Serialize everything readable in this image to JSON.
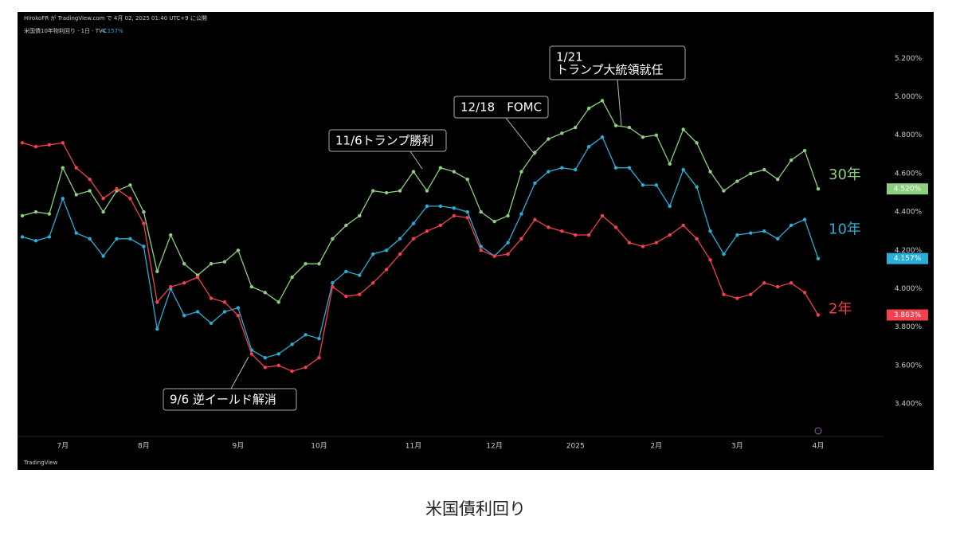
{
  "header": {
    "publisher": "HirokoFR が TradingView.com で 4月 02, 2025 01:40 UTC+9 に公開",
    "symbol": "米国債10年物利回り · 1日 · TVC",
    "price": "4.157%"
  },
  "chart_data": {
    "type": "line",
    "categories": [
      null,
      null,
      null,
      "7月",
      null,
      null,
      null,
      null,
      null,
      "8月",
      null,
      null,
      null,
      null,
      null,
      null,
      "9月",
      null,
      null,
      null,
      null,
      null,
      "10月",
      null,
      null,
      null,
      null,
      null,
      null,
      "11月",
      null,
      null,
      null,
      null,
      null,
      "12月",
      null,
      null,
      null,
      null,
      null,
      "2025",
      null,
      null,
      null,
      null,
      null,
      "2月",
      null,
      null,
      null,
      null,
      null,
      "3月",
      null,
      null,
      null,
      null,
      null,
      "4月"
    ],
    "series": [
      {
        "name": "30年",
        "color": "#8ccf7e",
        "last_label": "4.520%",
        "values": [
          4.38,
          4.4,
          4.39,
          4.63,
          4.49,
          4.51,
          4.4,
          4.51,
          4.54,
          4.4,
          4.09,
          4.28,
          4.13,
          4.07,
          4.13,
          4.14,
          4.2,
          4.01,
          3.98,
          3.93,
          4.06,
          4.13,
          4.13,
          4.26,
          4.33,
          4.38,
          4.51,
          4.5,
          4.51,
          4.61,
          4.51,
          4.63,
          4.61,
          4.57,
          4.4,
          4.35,
          4.38,
          4.61,
          4.71,
          4.78,
          4.81,
          4.84,
          4.94,
          4.98,
          4.85,
          4.84,
          4.79,
          4.8,
          4.65,
          4.83,
          4.76,
          4.61,
          4.51,
          4.56,
          4.6,
          4.62,
          4.57,
          4.67,
          4.72,
          4.52
        ]
      },
      {
        "name": "10年",
        "color": "#2aaed8",
        "last_label": "4.157%",
        "values": [
          4.27,
          4.25,
          4.27,
          4.47,
          4.29,
          4.26,
          4.17,
          4.26,
          4.26,
          4.22,
          3.79,
          4.0,
          3.86,
          3.88,
          3.82,
          3.88,
          3.9,
          3.68,
          3.64,
          3.66,
          3.71,
          3.76,
          3.74,
          4.03,
          4.09,
          4.07,
          4.18,
          4.2,
          4.26,
          4.34,
          4.43,
          4.43,
          4.42,
          4.4,
          4.22,
          4.17,
          4.24,
          4.39,
          4.55,
          4.61,
          4.63,
          4.62,
          4.74,
          4.79,
          4.63,
          4.63,
          4.54,
          4.54,
          4.43,
          4.62,
          4.53,
          4.3,
          4.18,
          4.28,
          4.29,
          4.3,
          4.26,
          4.33,
          4.36,
          4.157
        ]
      },
      {
        "name": "2年",
        "color": "#f2404e",
        "last_label": "3.863%",
        "values": [
          4.76,
          4.74,
          4.75,
          4.76,
          4.63,
          4.57,
          4.47,
          4.52,
          4.47,
          4.34,
          3.93,
          4.01,
          4.03,
          4.06,
          3.95,
          3.93,
          3.86,
          3.66,
          3.59,
          3.6,
          3.57,
          3.59,
          3.64,
          4.01,
          3.96,
          3.97,
          4.03,
          4.1,
          4.18,
          4.26,
          4.3,
          4.33,
          4.38,
          4.37,
          4.2,
          4.17,
          4.18,
          4.26,
          4.36,
          4.32,
          4.3,
          4.28,
          4.28,
          4.38,
          4.32,
          4.24,
          4.22,
          4.24,
          4.28,
          4.33,
          4.26,
          4.15,
          3.97,
          3.95,
          3.97,
          4.03,
          4.01,
          4.03,
          3.98,
          3.863
        ]
      }
    ],
    "ylim": [
      3.23,
      5.38
    ],
    "yticks": [
      {
        "value": 3.4,
        "label": "3.400%"
      },
      {
        "value": 3.6,
        "label": "3.600%"
      },
      {
        "value": 3.8,
        "label": "3.800%"
      },
      {
        "value": 4.0,
        "label": "4.000%"
      },
      {
        "value": 4.2,
        "label": "4.200%"
      },
      {
        "value": 4.4,
        "label": "4.400%"
      },
      {
        "value": 4.6,
        "label": "4.600%"
      },
      {
        "value": 4.8,
        "label": "4.800%"
      },
      {
        "value": 5.0,
        "label": "5.000%"
      },
      {
        "value": 5.2,
        "label": "5.200%"
      }
    ],
    "annotations": [
      {
        "lines": [
          "11/6トランプ勝利"
        ]
      },
      {
        "lines": [
          "12/18　FOMC"
        ]
      },
      {
        "lines": [
          "1/21",
          "トランプ大統領就任"
        ]
      },
      {
        "lines": [
          "9/6 逆イールド解消"
        ]
      }
    ]
  },
  "footer": {
    "logo": "TradingView"
  },
  "caption": "米国債利回り"
}
